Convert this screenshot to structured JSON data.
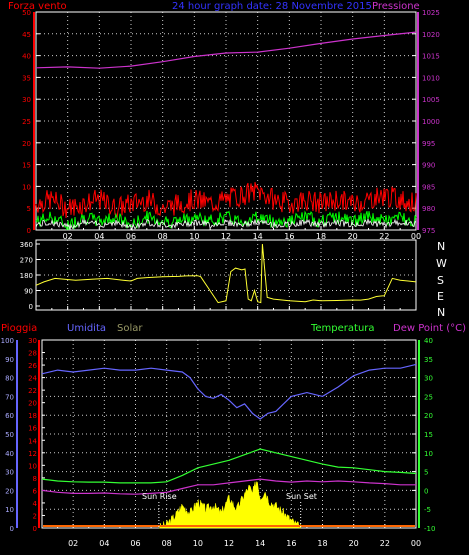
{
  "colors": {
    "background": "#000000",
    "frame": "#ffffff",
    "grid": "#ffffff",
    "wind_axis": "#ff0000",
    "pressure": "#cc33cc",
    "wind_gust": "#ff0000",
    "wind_speed": "#00ff00",
    "wind_avg": "#ffffff",
    "title": "#3333ff",
    "direction": "#ffff33",
    "rain": "#ff0000",
    "humidity": "#6666ff",
    "solar": "#ffff00",
    "solar_label": "#999966",
    "temperature": "#33ff33",
    "dewpoint": "#cc33cc",
    "tick_text": "#ffffff"
  },
  "header": {
    "left_label": "Forza vento",
    "title": "24 hour graph date: 28 Novembre 2015",
    "right_label": "Pressione"
  },
  "lower_header": {
    "rain_label": "Pioggia",
    "humidity_label": "Umidita",
    "solar_label": "Solar",
    "temperature_label": "Temperatura",
    "dewpoint_label": "Dew Point (°C)"
  },
  "compass": [
    "N",
    "W",
    "S",
    "E",
    "N"
  ],
  "annotations": {
    "sunrise": "Sun Rise",
    "sunset": "Sun Set"
  },
  "x_ticks": [
    "02",
    "04",
    "06",
    "08",
    "10",
    "12",
    "14",
    "16",
    "18",
    "20",
    "22",
    "00"
  ],
  "chart_data": [
    {
      "type": "line",
      "name": "wind-pressure",
      "x_range": [
        0,
        24
      ],
      "y_left": {
        "ticks": [
          0,
          5,
          10,
          15,
          20,
          25,
          30,
          35,
          40,
          45,
          50
        ],
        "range": [
          0,
          50
        ]
      },
      "y_right": {
        "ticks": [
          975,
          980,
          985,
          990,
          995,
          1000,
          1005,
          1010,
          1015,
          1020,
          1025
        ],
        "range": [
          975,
          1025
        ]
      },
      "series": [
        {
          "key": "pressure",
          "axis": "right",
          "x": [
            0,
            2,
            4,
            6,
            8,
            10,
            12,
            14,
            16,
            18,
            20,
            22,
            24
          ],
          "values": [
            1012.2,
            1012.4,
            1012.1,
            1012.6,
            1013.6,
            1014.8,
            1015.6,
            1015.8,
            1016.7,
            1017.8,
            1018.8,
            1019.6,
            1020.4
          ]
        },
        {
          "key": "wind_gust",
          "axis": "left",
          "x": [
            0,
            1,
            2,
            3,
            4,
            5,
            6,
            7,
            8,
            9,
            10,
            11,
            12,
            13,
            14,
            15,
            16,
            17,
            18,
            19,
            20,
            21,
            22,
            23,
            24
          ],
          "values": [
            6,
            7,
            5,
            6,
            7,
            5,
            6,
            7,
            5,
            6,
            7,
            6,
            7,
            8,
            9,
            7,
            6,
            7,
            6,
            7,
            6,
            7,
            8,
            7,
            6
          ]
        },
        {
          "key": "wind_speed",
          "axis": "left",
          "x": [
            0,
            1,
            2,
            3,
            4,
            5,
            6,
            7,
            8,
            9,
            10,
            11,
            12,
            13,
            14,
            15,
            16,
            17,
            18,
            19,
            20,
            21,
            22,
            23,
            24
          ],
          "values": [
            2,
            3,
            1,
            3,
            2,
            3,
            1,
            3,
            2,
            2,
            3,
            2,
            3,
            2,
            3,
            2,
            2,
            3,
            2,
            3,
            2,
            3,
            2,
            3,
            2
          ]
        }
      ]
    },
    {
      "type": "line",
      "name": "wind-direction",
      "x_range": [
        0,
        24
      ],
      "y": {
        "ticks": [
          0,
          90,
          180,
          270,
          360
        ],
        "range": [
          0,
          360
        ]
      },
      "series": [
        {
          "key": "direction",
          "x": [
            0,
            0.5,
            1.2,
            2.5,
            3.5,
            4.5,
            5.5,
            6.0,
            6.4,
            7.0,
            8.0,
            9.0,
            9.5,
            10.2,
            10.4,
            11.5,
            12.0,
            12.3,
            12.6,
            13.0,
            13.2,
            13.4,
            13.6,
            13.8,
            14.0,
            14.2,
            14.3,
            14.6,
            15.0,
            16.0,
            17.0,
            17.5,
            18.0,
            19.0,
            20.0,
            20.5,
            21.0,
            21.5,
            22.0,
            22.5,
            23.0,
            23.5,
            24.0
          ],
          "values": [
            120,
            140,
            160,
            150,
            155,
            160,
            150,
            145,
            160,
            165,
            170,
            172,
            175,
            176,
            170,
            20,
            30,
            200,
            220,
            210,
            215,
            40,
            30,
            90,
            25,
            20,
            360,
            50,
            40,
            30,
            25,
            35,
            30,
            32,
            35,
            34,
            40,
            55,
            60,
            160,
            150,
            145,
            140
          ]
        }
      ]
    },
    {
      "type": "line",
      "name": "humidity-temperature-solar",
      "x_range": [
        0,
        24
      ],
      "y_rain": {
        "ticks": [
          0,
          2,
          4,
          6,
          8,
          10,
          12,
          14,
          16,
          18,
          20,
          22,
          24,
          26,
          28,
          30
        ],
        "range": [
          0,
          30
        ]
      },
      "y_humidity": {
        "ticks": [
          0,
          10,
          20,
          30,
          40,
          50,
          60,
          70,
          80,
          90,
          100
        ],
        "range": [
          0,
          100
        ]
      },
      "y_temperature": {
        "ticks": [
          -10,
          -5,
          0,
          5,
          10,
          15,
          20,
          25,
          30,
          35,
          40
        ],
        "range": [
          -10,
          40
        ]
      },
      "sunrise_hour": 7.5,
      "sunset_hour": 16.6,
      "series": [
        {
          "key": "humidity",
          "axis": "humidity",
          "x": [
            0,
            1,
            2,
            3,
            4,
            5,
            6,
            7,
            8,
            9,
            9.5,
            10,
            10.5,
            11,
            11.5,
            12,
            12.5,
            13,
            13.5,
            14,
            14.5,
            15,
            15.5,
            16,
            17,
            18,
            19,
            20,
            21,
            22,
            23,
            24
          ],
          "values": [
            82,
            84,
            83,
            84,
            85,
            84,
            84,
            85,
            84,
            83,
            80,
            74,
            70,
            69,
            71,
            68,
            64,
            66,
            61,
            58,
            61,
            62,
            66,
            70,
            72,
            70,
            75,
            81,
            84,
            85,
            85,
            87
          ]
        },
        {
          "key": "temperature",
          "axis": "temperature",
          "x": [
            0,
            1,
            2,
            3,
            4,
            5,
            6,
            7,
            8,
            9,
            10,
            11,
            12,
            13,
            14,
            15,
            16,
            17,
            18,
            19,
            20,
            21,
            22,
            23,
            24
          ],
          "values": [
            3,
            2.5,
            2.3,
            2.2,
            2.2,
            2.0,
            2.0,
            2.0,
            2.3,
            4.0,
            6.0,
            7.0,
            8.0,
            9.5,
            11.0,
            10.0,
            9.0,
            8.0,
            7.0,
            6.2,
            6.0,
            5.5,
            5.0,
            4.8,
            4.5
          ]
        },
        {
          "key": "dewpoint",
          "axis": "temperature",
          "x": [
            0,
            1,
            2,
            3,
            4,
            5,
            6,
            7,
            8,
            9,
            10,
            11,
            12,
            13,
            14,
            15,
            16,
            17,
            18,
            19,
            20,
            21,
            22,
            23,
            24
          ],
          "values": [
            0,
            -0.5,
            -0.8,
            -0.8,
            -0.7,
            -0.9,
            -1.0,
            -0.8,
            -0.5,
            0.5,
            1.5,
            1.5,
            2.0,
            2.5,
            3.0,
            2.5,
            2.2,
            2.5,
            2.3,
            2.5,
            2.3,
            2.0,
            1.8,
            1.5,
            1.5
          ]
        },
        {
          "key": "solar",
          "axis": "temperature",
          "x": [
            7.5,
            8.0,
            8.5,
            9.0,
            9.5,
            10.0,
            10.5,
            11.0,
            11.5,
            12.0,
            12.5,
            13.0,
            13.3,
            13.5,
            13.8,
            14.0,
            14.3,
            14.6,
            15.0,
            15.5,
            16.0,
            16.6
          ],
          "values": [
            -10,
            -9,
            -7,
            -4,
            -6,
            -3,
            -5,
            -4,
            -6,
            -2,
            -5,
            -1,
            1,
            -1,
            3,
            -2,
            0,
            -3,
            -4,
            -6,
            -8,
            -10
          ]
        }
      ]
    }
  ]
}
